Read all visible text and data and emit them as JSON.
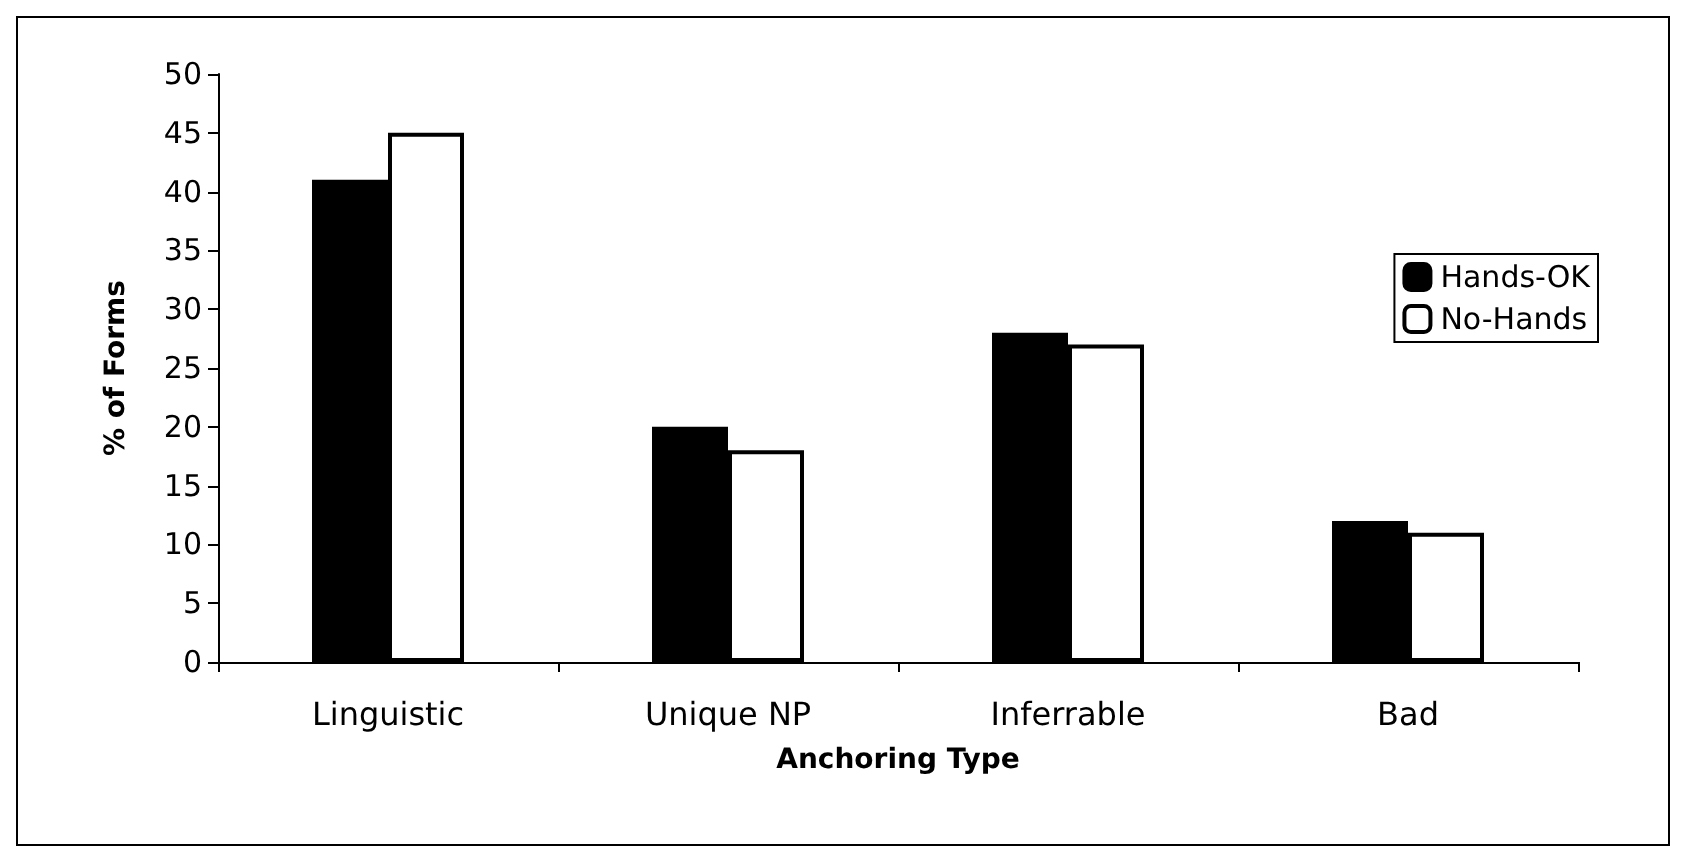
{
  "chart_data": {
    "type": "bar",
    "xlabel": "Anchoring Type",
    "ylabel": "% of Forms",
    "categories": [
      "Linguistic",
      "Unique NP",
      "Inferrable",
      "Bad"
    ],
    "series": [
      {
        "name": "Hands-OK",
        "color": "#000000",
        "values": [
          41,
          20,
          28,
          12
        ]
      },
      {
        "name": "No-Hands",
        "color": "#ffffff",
        "values": [
          45,
          18,
          27,
          11
        ]
      }
    ],
    "ylim": [
      0,
      50
    ],
    "yticks": [
      0,
      5,
      10,
      15,
      20,
      25,
      30,
      35,
      40,
      45,
      50
    ],
    "grid": false,
    "legend": "right"
  }
}
